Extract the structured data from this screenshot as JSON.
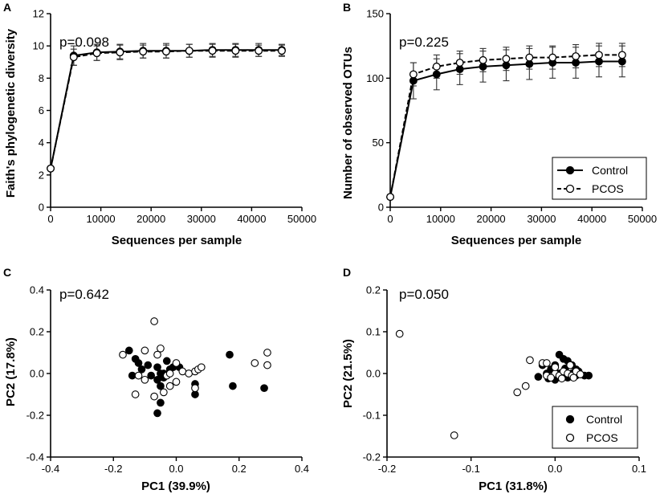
{
  "figure": {
    "panels": [
      "A",
      "B",
      "C",
      "D"
    ]
  },
  "chart_data": [
    {
      "id": "A",
      "type": "line",
      "panel_label": "A",
      "annotation": "p=0.098",
      "xlabel": "Sequences per sample",
      "ylabel": "Faith's phylogenetic diversity",
      "xlim": [
        0,
        50000
      ],
      "ylim": [
        0,
        12
      ],
      "xticks": [
        0,
        10000,
        20000,
        30000,
        40000,
        50000
      ],
      "xtick_labels": [
        "0",
        "10000",
        "20000",
        "30000",
        "40000",
        "50000"
      ],
      "yticks": [
        0,
        2,
        4,
        6,
        8,
        10,
        12
      ],
      "ytick_labels": [
        "0",
        "2",
        "4",
        "6",
        "8",
        "10",
        "12"
      ],
      "x": [
        10,
        4600,
        9200,
        13800,
        18400,
        23000,
        27600,
        32200,
        36800,
        41400,
        46000
      ],
      "series": [
        {
          "name": "Control",
          "marker": "filled",
          "linestyle": "solid",
          "values": [
            2.4,
            9.4,
            9.6,
            9.65,
            9.7,
            9.7,
            9.7,
            9.75,
            9.75,
            9.75,
            9.75
          ],
          "errors": [
            0.1,
            0.6,
            0.5,
            0.45,
            0.45,
            0.45,
            0.4,
            0.4,
            0.4,
            0.4,
            0.35
          ]
        },
        {
          "name": "PCOS",
          "marker": "open",
          "linestyle": "dashed",
          "values": [
            2.4,
            9.3,
            9.55,
            9.6,
            9.65,
            9.65,
            9.7,
            9.7,
            9.7,
            9.7,
            9.7
          ],
          "errors": [
            0.1,
            0.5,
            0.45,
            0.45,
            0.4,
            0.4,
            0.4,
            0.4,
            0.4,
            0.35,
            0.35
          ]
        }
      ]
    },
    {
      "id": "B",
      "type": "line",
      "panel_label": "B",
      "annotation": "p=0.225",
      "xlabel": "Sequences per sample",
      "ylabel": "Number of observed OTUs",
      "xlim": [
        0,
        50000
      ],
      "ylim": [
        0,
        150
      ],
      "xticks": [
        0,
        10000,
        20000,
        30000,
        40000,
        50000
      ],
      "xtick_labels": [
        "0",
        "10000",
        "20000",
        "30000",
        "40000",
        "50000"
      ],
      "yticks": [
        0,
        50,
        100,
        150
      ],
      "ytick_labels": [
        "0",
        "50",
        "100",
        "150"
      ],
      "legend": {
        "position": "bottom-right",
        "entries": [
          "Control",
          "PCOS"
        ]
      },
      "x": [
        10,
        4600,
        9200,
        13800,
        18400,
        23000,
        27600,
        32200,
        36800,
        41400,
        46000
      ],
      "series": [
        {
          "name": "Control",
          "marker": "filled",
          "linestyle": "solid",
          "values": [
            8,
            98,
            103,
            107,
            109,
            110,
            111,
            112,
            112,
            113,
            113
          ],
          "errors": [
            1,
            14,
            12,
            12,
            12,
            12,
            12,
            12,
            12,
            12,
            12
          ]
        },
        {
          "name": "PCOS",
          "marker": "open",
          "linestyle": "dashed",
          "values": [
            8,
            103,
            109,
            112,
            114,
            115,
            116,
            116,
            117,
            118,
            118
          ],
          "errors": [
            1,
            9,
            9,
            9,
            9,
            9,
            9,
            9,
            9,
            9,
            9
          ]
        }
      ]
    },
    {
      "id": "C",
      "type": "scatter",
      "panel_label": "C",
      "annotation": "p=0.642",
      "xlabel": "PC1 (39.9%)",
      "ylabel": "PC2 (17.8%)",
      "xlim": [
        -0.4,
        0.4
      ],
      "ylim": [
        -0.4,
        0.4
      ],
      "xticks": [
        -0.4,
        -0.2,
        0.0,
        0.2,
        0.4
      ],
      "xtick_labels": [
        "-0.4",
        "-0.2",
        "0.0",
        "0.2",
        "0.4"
      ],
      "yticks": [
        -0.4,
        -0.2,
        0.0,
        0.2,
        0.4
      ],
      "ytick_labels": [
        "-0.4",
        "-0.2",
        "0.0",
        "0.2",
        "0.4"
      ],
      "series": [
        {
          "name": "Control",
          "marker": "filled",
          "points": [
            [
              -0.15,
              0.11
            ],
            [
              -0.13,
              0.07
            ],
            [
              -0.12,
              0.05
            ],
            [
              -0.14,
              -0.01
            ],
            [
              -0.11,
              0.02
            ],
            [
              -0.08,
              -0.01
            ],
            [
              -0.06,
              0.03
            ],
            [
              -0.05,
              0.0
            ],
            [
              -0.04,
              0.0
            ],
            [
              -0.06,
              -0.03
            ],
            [
              -0.05,
              -0.06
            ],
            [
              -0.06,
              -0.19
            ],
            [
              -0.03,
              0.06
            ],
            [
              -0.02,
              0.02
            ],
            [
              -0.01,
              0.03
            ],
            [
              -0.04,
              -0.02
            ],
            [
              0.01,
              0.03
            ],
            [
              0.06,
              -0.05
            ],
            [
              0.06,
              -0.1
            ],
            [
              0.17,
              0.09
            ],
            [
              0.18,
              -0.06
            ],
            [
              0.28,
              -0.07
            ],
            [
              -0.05,
              -0.14
            ],
            [
              -0.09,
              0.04
            ]
          ]
        },
        {
          "name": "PCOS",
          "marker": "open",
          "points": [
            [
              -0.07,
              0.25
            ],
            [
              -0.17,
              0.09
            ],
            [
              -0.1,
              0.11
            ],
            [
              -0.12,
              -0.01
            ],
            [
              -0.1,
              -0.03
            ],
            [
              -0.13,
              -0.1
            ],
            [
              -0.07,
              -0.11
            ],
            [
              -0.06,
              0.09
            ],
            [
              -0.05,
              0.12
            ],
            [
              -0.03,
              -0.01
            ],
            [
              -0.04,
              -0.09
            ],
            [
              -0.02,
              -0.06
            ],
            [
              0.0,
              0.05
            ],
            [
              0.02,
              0.01
            ],
            [
              0.04,
              0.0
            ],
            [
              0.06,
              0.01
            ],
            [
              0.07,
              0.02
            ],
            [
              0.08,
              0.03
            ],
            [
              0.06,
              -0.07
            ],
            [
              0.25,
              0.05
            ],
            [
              0.29,
              0.1
            ],
            [
              0.29,
              0.04
            ],
            [
              -0.02,
              0.0
            ],
            [
              0.0,
              -0.04
            ]
          ]
        }
      ]
    },
    {
      "id": "D",
      "type": "scatter",
      "panel_label": "D",
      "annotation": "p=0.050",
      "xlabel": "PC1 (31.8%)",
      "ylabel": "PC2 (21.5%)",
      "xlim": [
        -0.2,
        0.1
      ],
      "ylim": [
        -0.2,
        0.2
      ],
      "xticks": [
        -0.2,
        -0.1,
        0.0,
        0.1
      ],
      "xtick_labels": [
        "-0.2",
        "-0.1",
        "0.0",
        "0.1"
      ],
      "yticks": [
        -0.2,
        -0.1,
        0.0,
        0.1,
        0.2
      ],
      "ytick_labels": [
        "-0.2",
        "-0.1",
        "0.0",
        "0.1",
        "0.2"
      ],
      "legend": {
        "position": "bottom-right",
        "entries": [
          "Control",
          "PCOS"
        ]
      },
      "series": [
        {
          "name": "Control",
          "marker": "filled",
          "points": [
            [
              0.005,
              0.045
            ],
            [
              0.01,
              0.035
            ],
            [
              0.015,
              0.03
            ],
            [
              0.02,
              0.02
            ],
            [
              0.025,
              0.01
            ],
            [
              0.0,
              0.02
            ],
            [
              0.005,
              0.0
            ],
            [
              0.01,
              -0.005
            ],
            [
              0.015,
              -0.01
            ],
            [
              0.02,
              0.0
            ],
            [
              0.025,
              -0.005
            ],
            [
              0.03,
              -0.002
            ],
            [
              0.035,
              -0.005
            ],
            [
              -0.005,
              0.01
            ],
            [
              -0.01,
              0.0
            ],
            [
              0.0,
              -0.015
            ],
            [
              -0.015,
              0.02
            ],
            [
              0.012,
              0.012
            ],
            [
              0.028,
              0.005
            ],
            [
              -0.02,
              -0.008
            ],
            [
              0.04,
              -0.005
            ],
            [
              -0.008,
              -0.012
            ]
          ]
        },
        {
          "name": "PCOS",
          "marker": "open",
          "points": [
            [
              -0.185,
              0.095
            ],
            [
              -0.12,
              -0.148
            ],
            [
              -0.045,
              -0.045
            ],
            [
              -0.035,
              -0.03
            ],
            [
              -0.03,
              0.032
            ],
            [
              -0.015,
              0.025
            ],
            [
              -0.01,
              0.025
            ],
            [
              -0.01,
              -0.005
            ],
            [
              0.0,
              0.0
            ],
            [
              0.005,
              -0.005
            ],
            [
              0.01,
              0.005
            ],
            [
              0.015,
              0.0
            ],
            [
              0.02,
              -0.005
            ],
            [
              0.025,
              0.005
            ],
            [
              0.03,
              -0.002
            ],
            [
              0.0,
              0.015
            ],
            [
              -0.005,
              -0.01
            ],
            [
              0.018,
              0.02
            ],
            [
              0.008,
              -0.012
            ],
            [
              0.022,
              -0.01
            ]
          ]
        }
      ]
    }
  ]
}
